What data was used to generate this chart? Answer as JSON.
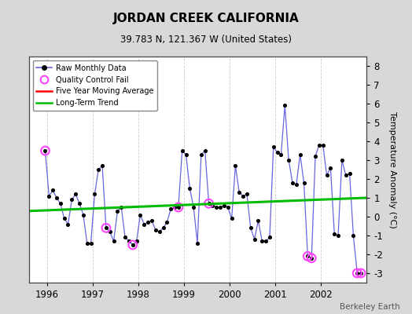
{
  "title": "JORDAN CREEK CALIFORNIA",
  "subtitle": "39.783 N, 121.367 W (United States)",
  "ylabel": "Temperature Anomaly (°C)",
  "watermark": "Berkeley Earth",
  "background_color": "#d8d8d8",
  "plot_bg_color": "#ffffff",
  "ylim": [
    -3.5,
    8.5
  ],
  "yticks": [
    -3,
    -2,
    -1,
    0,
    1,
    2,
    3,
    4,
    5,
    6,
    7,
    8
  ],
  "xlim": [
    1995.6,
    2003.0
  ],
  "xticks": [
    1996,
    1997,
    1998,
    1999,
    2000,
    2001,
    2002
  ],
  "raw_x": [
    1995.958,
    1996.042,
    1996.125,
    1996.208,
    1996.292,
    1996.375,
    1996.458,
    1996.542,
    1996.625,
    1996.708,
    1996.792,
    1996.875,
    1996.958,
    1997.042,
    1997.125,
    1997.208,
    1997.292,
    1997.375,
    1997.458,
    1997.542,
    1997.625,
    1997.708,
    1997.792,
    1997.875,
    1997.958,
    1998.042,
    1998.125,
    1998.208,
    1998.292,
    1998.375,
    1998.458,
    1998.542,
    1998.625,
    1998.708,
    1998.792,
    1998.875,
    1998.958,
    1999.042,
    1999.125,
    1999.208,
    1999.292,
    1999.375,
    1999.458,
    1999.542,
    1999.625,
    1999.708,
    1999.792,
    1999.875,
    1999.958,
    2000.042,
    2000.125,
    2000.208,
    2000.292,
    2000.375,
    2000.458,
    2000.542,
    2000.625,
    2000.708,
    2000.792,
    2000.875,
    2000.958,
    2001.042,
    2001.125,
    2001.208,
    2001.292,
    2001.375,
    2001.458,
    2001.542,
    2001.625,
    2001.708,
    2001.792,
    2001.875,
    2001.958,
    2002.042,
    2002.125,
    2002.208,
    2002.292,
    2002.375,
    2002.458,
    2002.542,
    2002.625,
    2002.708,
    2002.792,
    2002.875
  ],
  "raw_y": [
    3.5,
    1.1,
    1.4,
    1.0,
    0.7,
    -0.1,
    -0.4,
    0.9,
    1.2,
    0.7,
    0.1,
    -1.4,
    -1.4,
    1.2,
    2.5,
    2.7,
    -0.6,
    -0.8,
    -1.3,
    0.3,
    0.5,
    -1.1,
    -1.3,
    -1.5,
    -1.3,
    0.1,
    -0.4,
    -0.3,
    -0.2,
    -0.7,
    -0.8,
    -0.6,
    -0.3,
    0.4,
    0.5,
    0.5,
    3.5,
    3.3,
    1.5,
    0.5,
    -1.4,
    3.3,
    3.5,
    0.7,
    0.6,
    0.5,
    0.5,
    0.6,
    0.5,
    -0.1,
    2.7,
    1.3,
    1.1,
    1.2,
    -0.6,
    -1.2,
    -0.2,
    -1.3,
    -1.3,
    -1.1,
    3.7,
    3.4,
    3.3,
    5.9,
    3.0,
    1.8,
    1.7,
    3.3,
    1.8,
    -2.1,
    -2.2,
    3.2,
    3.8,
    3.8,
    2.2,
    2.6,
    -0.9,
    -1.0,
    3.0,
    2.2,
    2.3,
    -1.0,
    -3.0,
    -3.0
  ],
  "qc_fail_x": [
    1995.958,
    1997.292,
    1997.875,
    1998.875,
    1999.542,
    2001.708,
    2001.792,
    2002.792,
    2002.875
  ],
  "qc_fail_y": [
    3.5,
    -0.6,
    -1.5,
    0.5,
    0.7,
    -2.1,
    -2.2,
    -3.0,
    -3.0
  ],
  "trend_x": [
    1995.6,
    2003.0
  ],
  "trend_y": [
    0.3,
    1.0
  ],
  "line_color": "#6666dd",
  "marker_color": "#000000",
  "qc_color": "#ff44ff",
  "trend_color": "#00bb00",
  "moving_avg_color": "#ff0000",
  "grid_color": "#cccccc",
  "grid_style": "--"
}
